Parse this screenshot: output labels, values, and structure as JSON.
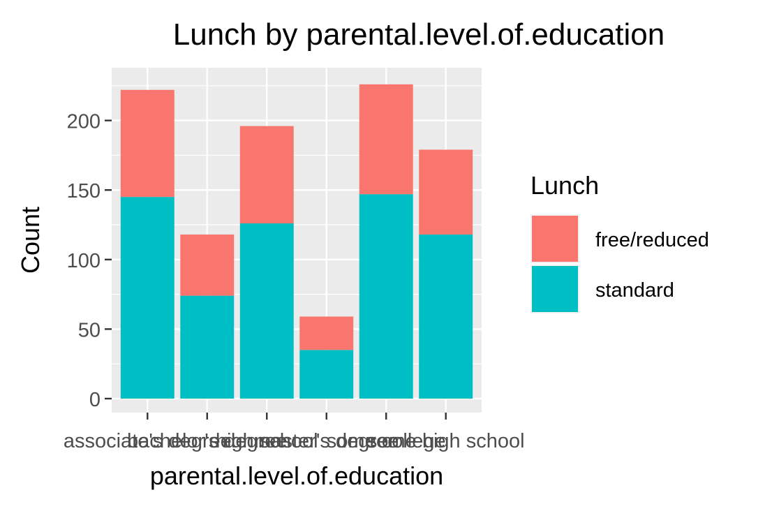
{
  "chart_data": {
    "type": "bar",
    "stacked": true,
    "title": "Lunch by parental.level.of.education",
    "xlabel": "parental.level.of.education",
    "ylabel": "Count",
    "categories": [
      "associate's degree",
      "bachelor's degree",
      "high school",
      "master's degree",
      "some college",
      "some high school"
    ],
    "series": [
      {
        "name": "free/reduced",
        "values": [
          77,
          44,
          70,
          24,
          79,
          61
        ],
        "color": "#F8766D"
      },
      {
        "name": "standard",
        "values": [
          145,
          74,
          126,
          35,
          147,
          118
        ],
        "color": "#00BFC4"
      }
    ],
    "ylim": [
      0,
      230
    ],
    "yticks": [
      0,
      50,
      100,
      150,
      200
    ],
    "grid": true,
    "legend": {
      "title": "Lunch",
      "position": "right"
    }
  }
}
